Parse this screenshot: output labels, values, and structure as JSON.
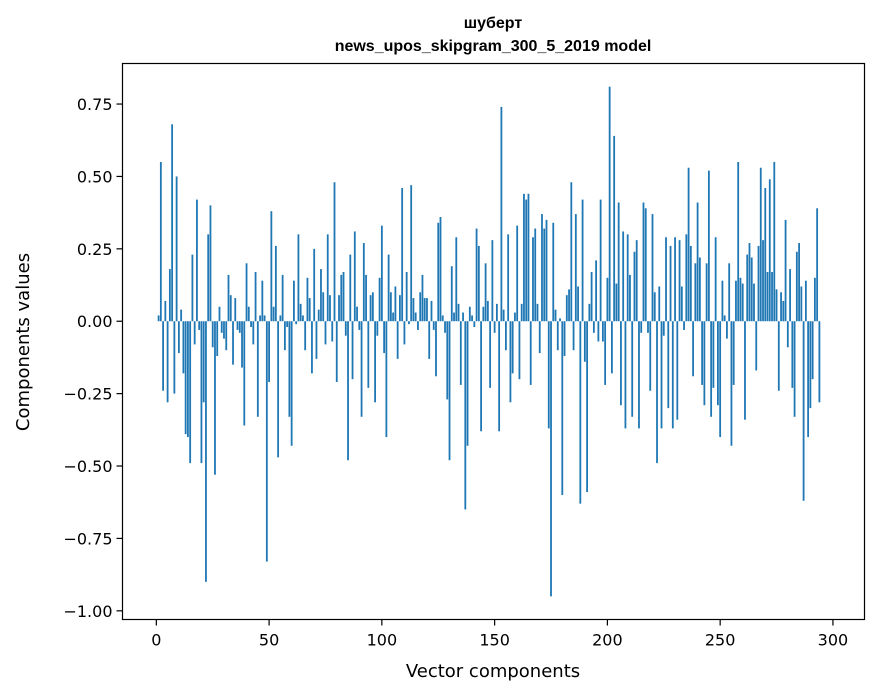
{
  "chart_data": {
    "type": "bar",
    "title": "шуберт",
    "subtitle": "news_upos_skipgram_300_5_2019 model",
    "xlabel": "Vector components",
    "ylabel": "Components values",
    "xlim": [
      -15,
      314
    ],
    "ylim": [
      -1.03,
      0.89
    ],
    "xticks": [
      0,
      50,
      100,
      150,
      200,
      250,
      300
    ],
    "xtick_labels": [
      "0",
      "50",
      "100",
      "150",
      "200",
      "250",
      "300"
    ],
    "yticks": [
      -1.0,
      -0.75,
      -0.5,
      -0.25,
      0.0,
      0.25,
      0.5,
      0.75
    ],
    "ytick_labels": [
      "−1.00",
      "−0.75",
      "−0.50",
      "−0.25",
      "0.00",
      "0.25",
      "0.50",
      "0.75"
    ],
    "grid": false,
    "bar_color": "#1f77b4",
    "values": [
      0.02,
      0.55,
      -0.24,
      0.07,
      -0.28,
      0.18,
      0.68,
      -0.25,
      0.5,
      -0.11,
      0.04,
      -0.18,
      -0.39,
      -0.4,
      -0.49,
      0.23,
      -0.08,
      0.42,
      -0.03,
      -0.49,
      -0.28,
      -0.9,
      0.3,
      0.4,
      -0.09,
      -0.53,
      -0.12,
      0.05,
      -0.04,
      -0.06,
      -0.1,
      0.16,
      0.09,
      -0.15,
      0.08,
      -0.03,
      -0.04,
      -0.16,
      -0.36,
      0.2,
      0.05,
      -0.02,
      -0.08,
      0.17,
      -0.33,
      0.02,
      0.14,
      0.02,
      -0.83,
      -0.21,
      0.38,
      0.05,
      0.26,
      -0.47,
      0.02,
      0.16,
      -0.1,
      -0.02,
      -0.33,
      -0.43,
      0.14,
      -0.01,
      0.3,
      0.06,
      0.02,
      -0.1,
      0.15,
      0.08,
      -0.18,
      0.25,
      -0.13,
      0.04,
      0.18,
      0.1,
      -0.08,
      0.3,
      0.09,
      -0.07,
      0.48,
      -0.21,
      0.09,
      0.16,
      0.17,
      -0.05,
      -0.48,
      0.23,
      -0.2,
      0.31,
      0.05,
      -0.03,
      -0.33,
      0.27,
      0.16,
      -0.23,
      0.09,
      0.1,
      -0.28,
      -0.05,
      0.15,
      0.33,
      -0.11,
      -0.4,
      0.23,
      0.1,
      0.03,
      0.12,
      -0.13,
      0.09,
      0.46,
      -0.08,
      0.17,
      -0.01,
      0.47,
      0.08,
      0.03,
      -0.03,
      0.1,
      0.16,
      0.08,
      0.08,
      -0.13,
      0.07,
      -0.03,
      -0.19,
      0.34,
      0.36,
      0.02,
      -0.04,
      -0.27,
      -0.48,
      0.19,
      0.03,
      0.29,
      0.06,
      -0.22,
      0.03,
      -0.65,
      -0.43,
      0.05,
      0.02,
      -0.02,
      0.32,
      0.26,
      -0.38,
      0.05,
      0.2,
      0.07,
      -0.23,
      0.28,
      -0.04,
      0.06,
      -0.38,
      0.74,
      0.04,
      -0.1,
      0.3,
      -0.28,
      -0.18,
      0.03,
      0.33,
      -0.2,
      0.06,
      0.44,
      0.42,
      0.44,
      -0.22,
      0.29,
      0.32,
      0.06,
      -0.11,
      0.37,
      0.32,
      0.35,
      -0.37,
      -0.95,
      0.34,
      0.04,
      -0.1,
      0.01,
      -0.6,
      -0.12,
      0.09,
      0.11,
      0.48,
      -0.1,
      0.37,
      0.12,
      -0.63,
      0.42,
      -0.14,
      -0.59,
      0.06,
      0.17,
      -0.04,
      0.21,
      -0.07,
      0.42,
      -0.07,
      -0.22,
      0.15,
      0.81,
      -0.18,
      0.64,
      0.13,
      0.41,
      -0.29,
      0.31,
      -0.37,
      0.3,
      0.16,
      -0.33,
      0.24,
      0.28,
      -0.37,
      -0.04,
      0.41,
      0.39,
      -0.04,
      -0.24,
      0.37,
      0.1,
      -0.49,
      0.12,
      -0.37,
      -0.05,
      0.29,
      -0.3,
      0.26,
      -0.37,
      0.29,
      -0.34,
      0.28,
      0.12,
      -0.03,
      0.3,
      0.53,
      0.26,
      -0.19,
      0.2,
      0.41,
      0.22,
      -0.22,
      -0.29,
      0.2,
      0.52,
      -0.33,
      -0.23,
      0.29,
      -0.29,
      -0.4,
      0.14,
      0.02,
      -0.06,
      0.2,
      -0.43,
      -0.22,
      0.14,
      0.55,
      0.15,
      0.13,
      -0.34,
      0.23,
      0.27,
      0.22,
      0.13,
      -0.17,
      0.26,
      0.53,
      0.28,
      0.46,
      0.17,
      0.49,
      0.17,
      0.55,
      0.11,
      -0.24,
      0.1,
      0.07,
      0.35,
      -0.09,
      0.18,
      -0.23,
      -0.33,
      0.24,
      0.27,
      0.12,
      -0.62,
      0.14,
      -0.4,
      -0.3,
      -0.2,
      0.15,
      0.39,
      -0.28
    ]
  }
}
